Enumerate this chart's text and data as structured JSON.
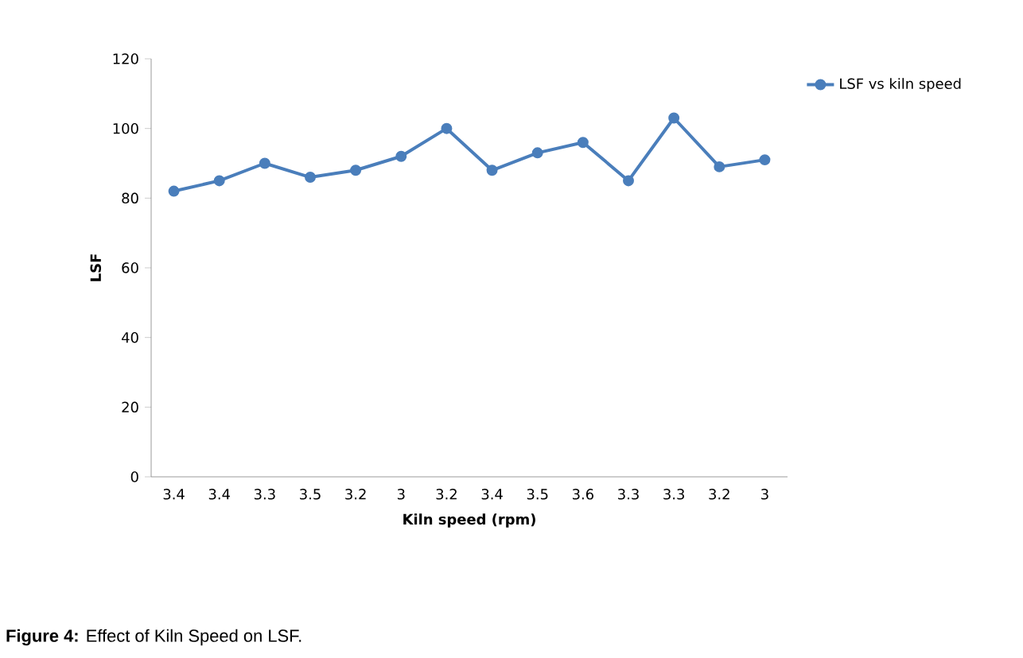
{
  "chart_data": {
    "type": "line",
    "xlabel": "Kiln speed (rpm)",
    "ylabel": "LSF",
    "categories": [
      "3.4",
      "3.4",
      "3.3",
      "3.5",
      "3.2",
      "3",
      "3.2",
      "3.4",
      "3.5",
      "3.6",
      "3.3",
      "3.3",
      "3.2",
      "3"
    ],
    "series": [
      {
        "name": "LSF vs kiln speed",
        "color": "#4a7ebb",
        "values": [
          82,
          85,
          90,
          86,
          88,
          92,
          100,
          88,
          93,
          96,
          85,
          103,
          89,
          91
        ]
      }
    ],
    "ylim": [
      0,
      120
    ],
    "yticks": [
      0,
      20,
      40,
      60,
      80,
      100,
      120
    ],
    "marker": "circle",
    "line_style": "solid",
    "grid": false,
    "legend": "top right",
    "annotations": [
      "**Figure 4:** Effect of Kiln Speed on LSF."
    ]
  }
}
